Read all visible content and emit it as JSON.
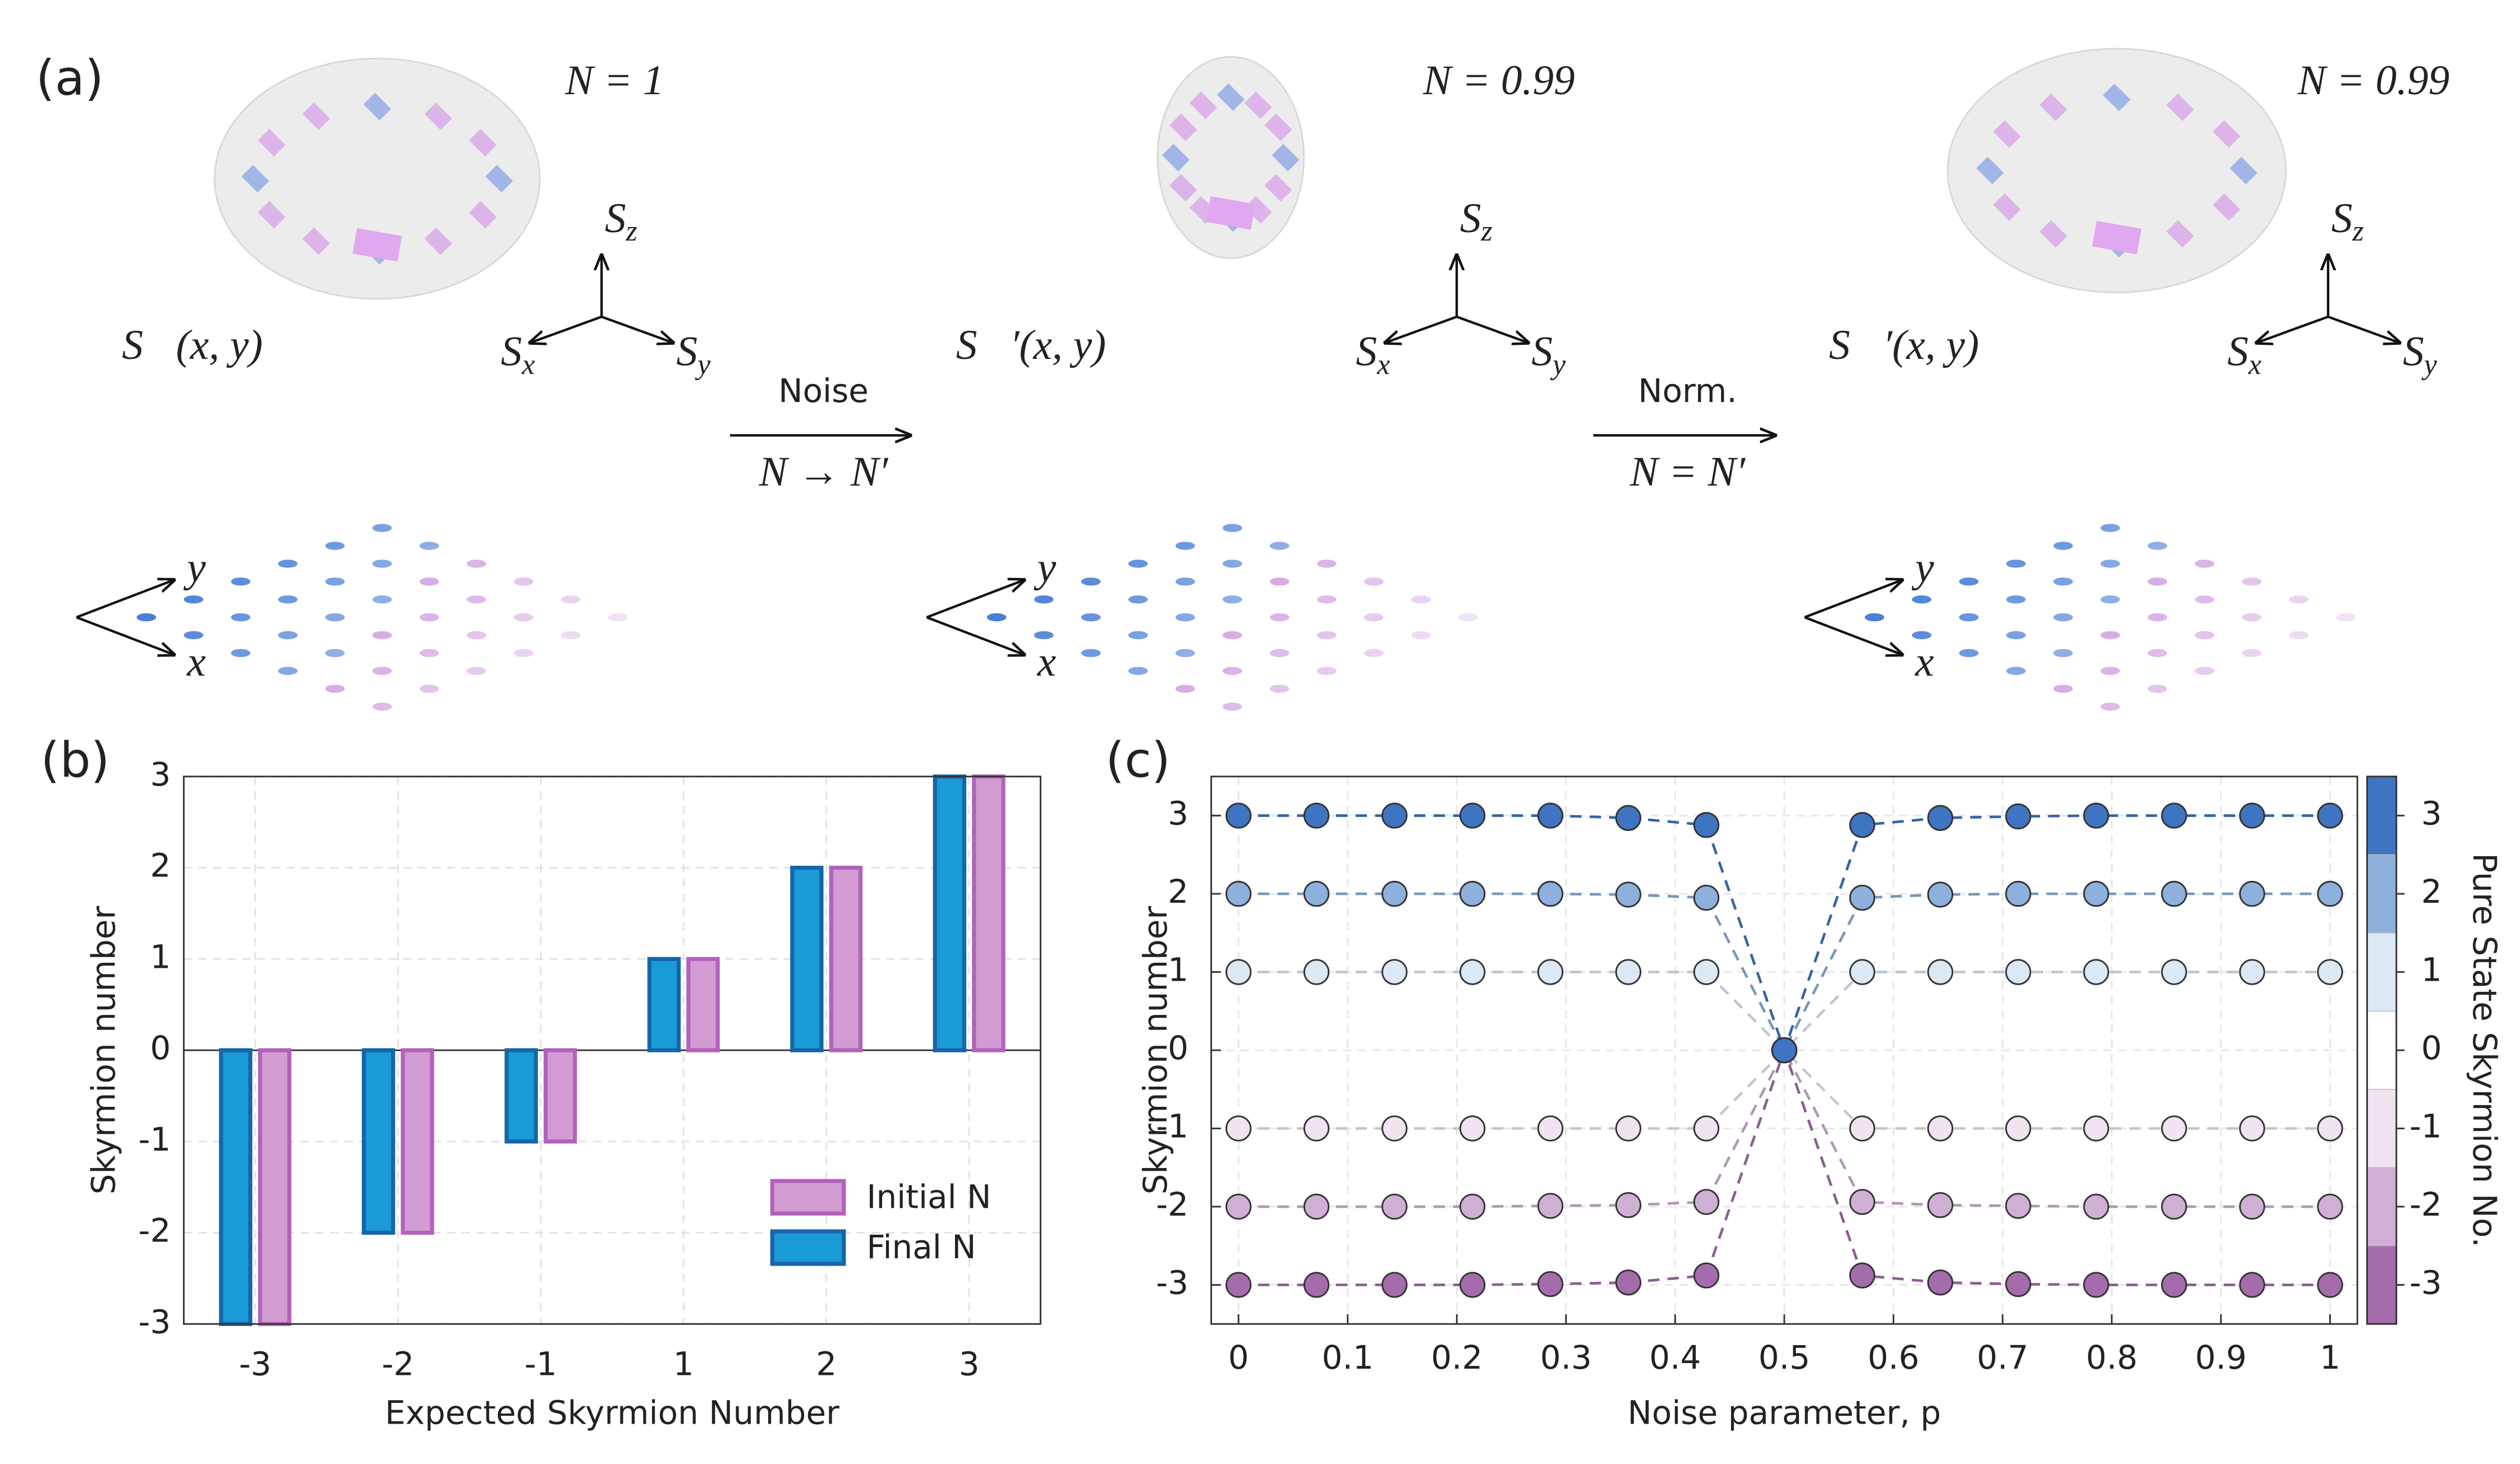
{
  "panel_a": {
    "label": "(a)",
    "stages": [
      {
        "N": "N = 1",
        "field": "S⃗(x, y)"
      },
      {
        "N": "N = 0.99",
        "field": "S⃗′(x, y)"
      },
      {
        "N": "N = 0.99",
        "field": "S⃗′(x, y)"
      }
    ],
    "arrows": [
      {
        "top": "Noise",
        "bottom": "N → N′"
      },
      {
        "top": "Norm.",
        "bottom": "N = N′"
      }
    ],
    "spin_axis_symbol": "S",
    "spin_axis_subscripts": [
      "z",
      "x",
      "y"
    ],
    "plane_axes": [
      "y",
      "x"
    ]
  },
  "chart_data": [
    {
      "type": "bar",
      "label": "(b)",
      "xlabel": "Expected Skyrmion Number",
      "ylabel": "Skyrmion number",
      "categories": [
        "-3",
        "-2",
        "-1",
        "1",
        "2",
        "3"
      ],
      "series": [
        {
          "name": "Final N",
          "color": "#1a9ad6",
          "edge": "#1566a8",
          "values": [
            -3,
            -2,
            -1,
            1,
            2,
            3
          ]
        },
        {
          "name": "Initial N",
          "color": "#d29cd2",
          "edge": "#b262ba",
          "values": [
            -3,
            -2,
            -1,
            1,
            2,
            3
          ]
        }
      ],
      "ylim": [
        -3,
        3
      ],
      "yticks": [
        -3,
        -2,
        -1,
        0,
        1,
        2,
        3
      ],
      "grid": true,
      "legend": "lower right"
    },
    {
      "type": "line",
      "label": "(c)",
      "xlabel": "Noise parameter, p",
      "ylabel": "Skyrmion number",
      "x": [
        0,
        0.0714,
        0.1429,
        0.2143,
        0.2857,
        0.3571,
        0.4286,
        0.5,
        0.5714,
        0.6429,
        0.7143,
        0.7857,
        0.8571,
        0.9286,
        1
      ],
      "series": [
        {
          "color": "#a56cac",
          "values": [
            -3,
            -3,
            -3,
            -3,
            -2.99,
            -2.97,
            -2.88,
            0,
            -2.88,
            -2.97,
            -2.99,
            -3,
            -3,
            -3,
            -3
          ]
        },
        {
          "color": "#cfb0d4",
          "values": [
            -2,
            -2,
            -2,
            -2,
            -1.99,
            -1.98,
            -1.94,
            0,
            -1.94,
            -1.98,
            -1.99,
            -2,
            -2,
            -2,
            -2
          ]
        },
        {
          "color": "#efe4f0",
          "values": [
            -1,
            -1,
            -1,
            -1,
            -1,
            -1,
            -1,
            0,
            -1,
            -1,
            -1,
            -1,
            -1,
            -1,
            -1
          ]
        },
        {
          "color": "#dde8f5",
          "values": [
            1,
            1,
            1,
            1,
            1,
            1,
            1,
            0,
            1,
            1,
            1,
            1,
            1,
            1,
            1
          ]
        },
        {
          "color": "#8eb0dc",
          "values": [
            2,
            2,
            2,
            2,
            2,
            1.99,
            1.95,
            0,
            1.95,
            1.99,
            2,
            2,
            2,
            2,
            2
          ]
        },
        {
          "color": "#3f74c2",
          "values": [
            3,
            3,
            3,
            3,
            3,
            2.97,
            2.88,
            0,
            2.88,
            2.97,
            2.99,
            3,
            3,
            3,
            3
          ]
        }
      ],
      "xlim": [
        -0.025,
        1.025
      ],
      "xticks": [
        0,
        0.1,
        0.2,
        0.3,
        0.4,
        0.5,
        0.6,
        0.7,
        0.8,
        0.9,
        1
      ],
      "ylim": [
        -3.5,
        3.5
      ],
      "yticks": [
        -3,
        -2,
        -1,
        0,
        1,
        2,
        3
      ],
      "grid": true,
      "colorbar": {
        "label": "Pure State Skyrmion No.",
        "clim": [
          -3.5,
          3.5
        ],
        "ticks": [
          -3,
          -2,
          -1,
          0,
          1,
          2,
          3
        ],
        "colors": [
          "#a56cac",
          "#cfb0d4",
          "#efe4f0",
          "#ffffff",
          "#dde8f5",
          "#8eb0dc",
          "#3f74c2"
        ]
      }
    }
  ]
}
